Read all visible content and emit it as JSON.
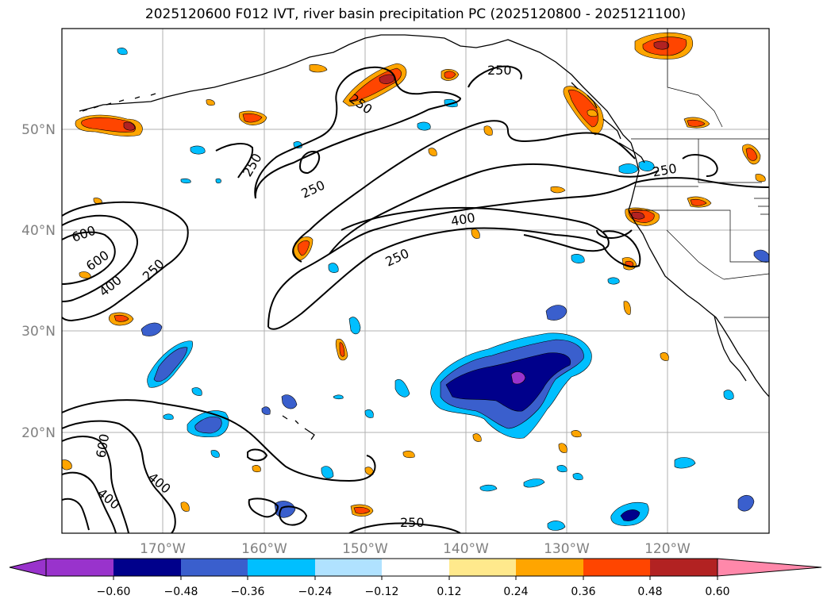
{
  "title": "2025120600 F012 IVT, river basin precipitation PC (2025120800 - 2025121100)",
  "map": {
    "lon_ticks": [
      "170°W",
      "160°W",
      "150°W",
      "140°W",
      "130°W",
      "120°W"
    ],
    "lat_ticks": [
      "50°N",
      "40°N",
      "30°N",
      "20°N"
    ],
    "gridlines": true
  },
  "ivt_contour_labels": [
    "250",
    "250",
    "250",
    "250",
    "250",
    "250",
    "250",
    "250",
    "400",
    "400",
    "400",
    "400",
    "600",
    "600",
    "600"
  ],
  "colorbar": {
    "tick_labels": [
      "−0.60",
      "−0.48",
      "−0.36",
      "−0.24",
      "−0.12",
      "0.12",
      "0.24",
      "0.36",
      "0.48",
      "0.60"
    ],
    "colors": [
      "#9933cc",
      "#00008b",
      "#3a5fcd",
      "#00bfff",
      "#b0e2ff",
      "#ffffff",
      "#ffe98c",
      "#ffa500",
      "#ff4500",
      "#b22222",
      "#ff88aa"
    ],
    "extend": "both"
  }
}
